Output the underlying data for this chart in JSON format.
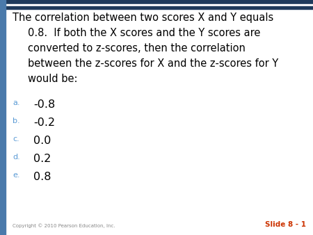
{
  "background_color": "#ffffff",
  "left_bar_color": "#4a7aab",
  "top_bar_color": "#1a3a5c",
  "top_bar_color2": "#dce6f1",
  "slide_label": "Slide 8 - 1",
  "slide_label_color": "#cc3300",
  "copyright_text": "Copyright © 2010 Pearson Education, Inc.",
  "copyright_color": "#888888",
  "question_text": "The correlation between two scores X and Y equals\n0.8.  If both the X scores and the Y scores are\nconverted to z-scores, then the correlation\nbetween the z-scores for X and the z-scores for Y\nwould be:",
  "question_fontsize": 10.5,
  "question_color": "#000000",
  "options": [
    {
      "letter": "a.",
      "text": "-0.8"
    },
    {
      "letter": "b.",
      "text": "-0.2"
    },
    {
      "letter": "c.",
      "text": "0.0"
    },
    {
      "letter": "d.",
      "text": "0.2"
    },
    {
      "letter": "e.",
      "text": "0.8"
    }
  ],
  "option_letter_color": "#5b9bd5",
  "option_text_color": "#000000",
  "option_letter_fontsize": 8.0,
  "option_text_fontsize": 11.5
}
